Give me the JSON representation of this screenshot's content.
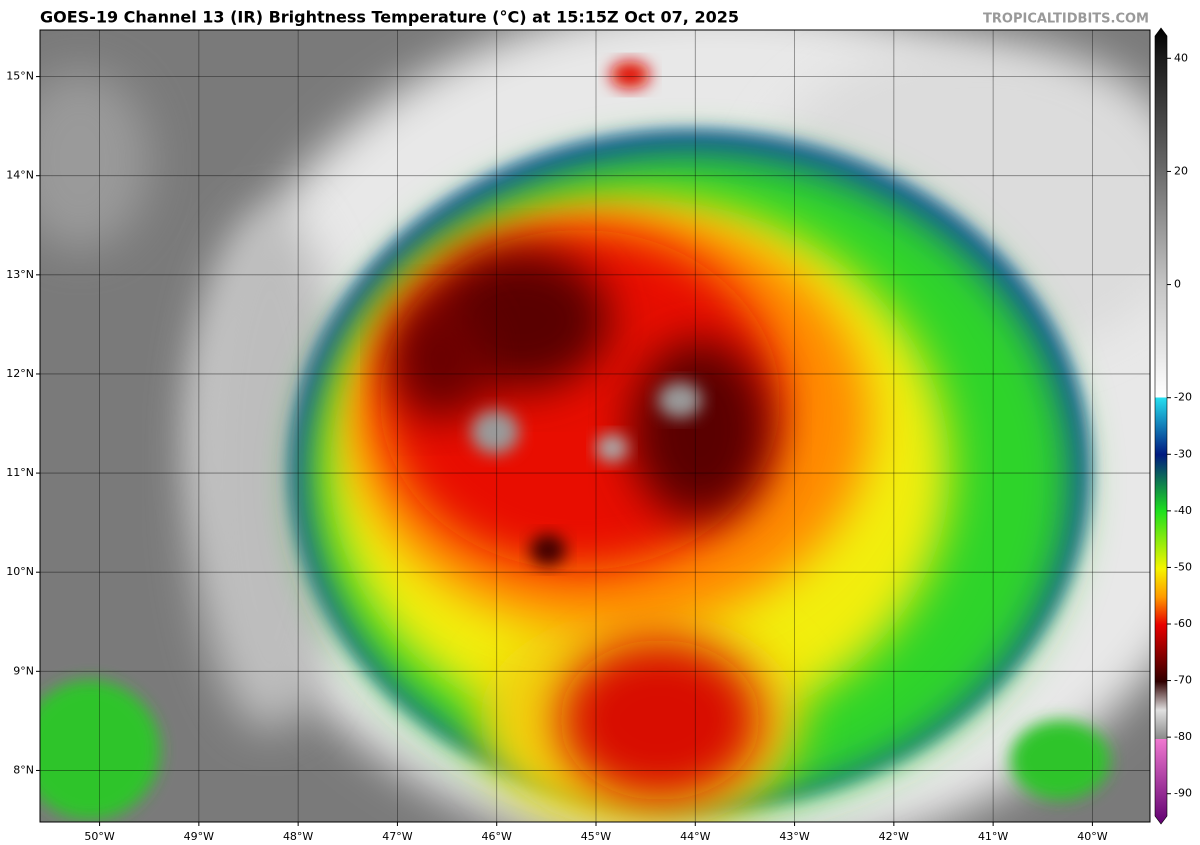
{
  "title": "GOES-19 Channel 13 (IR) Brightness Temperature (°C) at 15:15Z Oct 07, 2025",
  "credit": "TROPICALTIDBITS.COM",
  "map": {
    "xlim": [
      -50.6,
      -39.42
    ],
    "ylim": [
      7.48,
      15.47
    ],
    "xticks": [
      {
        "value": -50,
        "label": "50°W"
      },
      {
        "value": -49,
        "label": "49°W"
      },
      {
        "value": -48,
        "label": "48°W"
      },
      {
        "value": -47,
        "label": "47°W"
      },
      {
        "value": -46,
        "label": "46°W"
      },
      {
        "value": -45,
        "label": "45°W"
      },
      {
        "value": -44,
        "label": "44°W"
      },
      {
        "value": -43,
        "label": "43°W"
      },
      {
        "value": -42,
        "label": "42°W"
      },
      {
        "value": -41,
        "label": "41°W"
      },
      {
        "value": -40,
        "label": "40°W"
      }
    ],
    "yticks": [
      {
        "value": 8,
        "label": "8°N"
      },
      {
        "value": 9,
        "label": "9°N"
      },
      {
        "value": 10,
        "label": "10°N"
      },
      {
        "value": 11,
        "label": "11°N"
      },
      {
        "value": 12,
        "label": "12°N"
      },
      {
        "value": 13,
        "label": "13°N"
      },
      {
        "value": 14,
        "label": "14°N"
      },
      {
        "value": 15,
        "label": "15°N"
      }
    ],
    "grid": true
  },
  "colorbar": {
    "lim": [
      -95,
      45
    ],
    "ticks": [
      40,
      20,
      0,
      -20,
      -30,
      -40,
      -50,
      -60,
      -70,
      -80,
      -90
    ]
  }
}
